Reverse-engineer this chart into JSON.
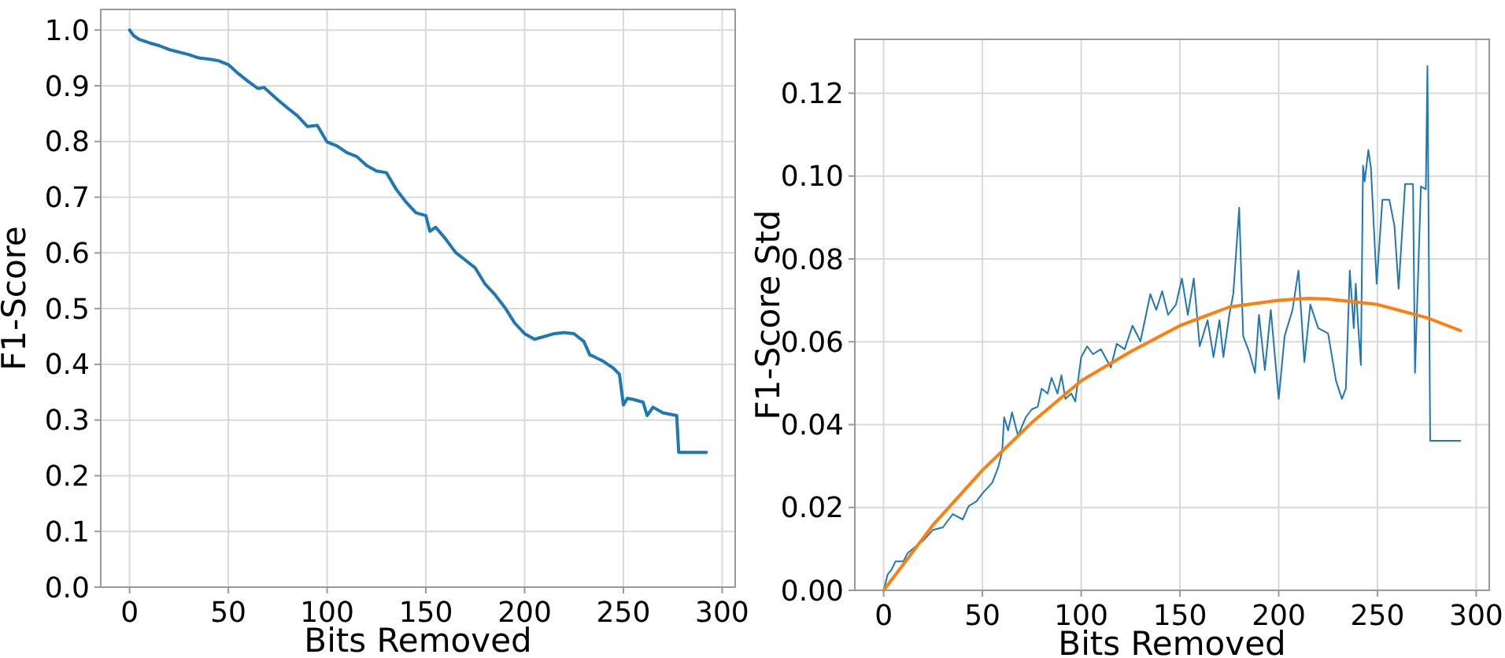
{
  "chart_data": [
    {
      "type": "line",
      "xlabel": "Bits Removed",
      "ylabel": "F1-Score",
      "xlim": [
        -14.6,
        306.6
      ],
      "ylim": [
        0,
        1.037
      ],
      "xticks": [
        0,
        50,
        100,
        150,
        200,
        250,
        300
      ],
      "yticks": [
        {
          "value": 0,
          "label": "0.0"
        },
        0.1,
        0.2,
        0.3,
        0.4,
        0.5,
        0.6,
        0.7,
        0.8,
        0.9,
        {
          "value": 1,
          "label": "1.0"
        }
      ],
      "grid": true,
      "line_style": "solid",
      "series": [
        {
          "color": "#1f77b4",
          "x": [
            0,
            2,
            5,
            10,
            15,
            20,
            30,
            35,
            40,
            45,
            50,
            55,
            60,
            65,
            68,
            75,
            80,
            85,
            90,
            95,
            100,
            105,
            110,
            115,
            120,
            125,
            130,
            135,
            140,
            145,
            150,
            152,
            155,
            160,
            165,
            170,
            175,
            180,
            185,
            190,
            195,
            200,
            205,
            210,
            215,
            220,
            225,
            230,
            233,
            235,
            240,
            245,
            248,
            250,
            252,
            255,
            260,
            262,
            265,
            270,
            277,
            278,
            292
          ],
          "values": [
            1.0,
            0.99,
            0.983,
            0.977,
            0.972,
            0.965,
            0.956,
            0.95,
            0.948,
            0.945,
            0.938,
            0.922,
            0.908,
            0.895,
            0.897,
            0.875,
            0.86,
            0.846,
            0.827,
            0.829,
            0.799,
            0.792,
            0.78,
            0.773,
            0.757,
            0.747,
            0.744,
            0.714,
            0.691,
            0.672,
            0.667,
            0.639,
            0.646,
            0.625,
            0.601,
            0.587,
            0.573,
            0.544,
            0.525,
            0.502,
            0.474,
            0.455,
            0.445,
            0.45,
            0.455,
            0.457,
            0.455,
            0.441,
            0.417,
            0.414,
            0.405,
            0.393,
            0.382,
            0.327,
            0.339,
            0.337,
            0.332,
            0.308,
            0.323,
            0.313,
            0.308,
            0.242,
            0.242
          ]
        }
      ]
    },
    {
      "type": "line",
      "xlabel": "Bits Removed",
      "ylabel": "F1-Score Std",
      "xlim": [
        -14.6,
        306.6
      ],
      "ylim": [
        0,
        0.133
      ],
      "xticks": [
        0,
        50,
        100,
        150,
        200,
        250,
        300
      ],
      "yticks": [
        {
          "value": 0,
          "label": "0.00"
        },
        {
          "value": 0.02,
          "label": "0.02"
        },
        {
          "value": 0.04,
          "label": "0.04"
        },
        {
          "value": 0.06,
          "label": "0.06"
        },
        {
          "value": 0.08,
          "label": "0.08"
        },
        {
          "value": 0.1,
          "label": "0.10"
        },
        {
          "value": 0.12,
          "label": "0.12"
        }
      ],
      "grid": true,
      "line_style": "solid",
      "series": [
        {
          "color": "#1f77b4",
          "x": [
            0,
            2,
            4,
            6,
            10,
            12,
            15,
            20,
            25,
            30,
            35,
            40,
            43,
            47,
            50,
            55,
            58,
            60,
            61,
            63,
            65,
            68,
            72,
            75,
            78,
            80,
            83,
            85,
            88,
            90,
            92,
            95,
            97,
            100,
            103,
            106,
            110,
            115,
            118,
            122,
            126,
            130,
            135,
            138,
            141,
            144,
            148,
            151,
            154,
            157,
            160,
            164,
            167,
            170,
            172,
            175,
            177,
            180,
            182,
            185,
            188,
            190,
            193,
            196,
            200,
            203,
            207,
            210,
            213,
            216,
            220,
            225,
            229,
            232,
            234,
            236,
            238,
            239,
            240.3,
            241.6,
            242.7,
            243.5,
            245.4,
            246.7,
            249.6,
            252.5,
            256,
            258.6,
            260.7,
            264,
            268,
            269,
            272,
            274.5,
            275.3,
            276.7,
            292
          ],
          "values": [
            0.0,
            0.0038,
            0.005,
            0.007,
            0.007,
            0.0089,
            0.0101,
            0.012,
            0.0146,
            0.0152,
            0.0184,
            0.0171,
            0.0203,
            0.0215,
            0.0234,
            0.026,
            0.0297,
            0.0335,
            0.0418,
            0.0386,
            0.043,
            0.0373,
            0.0418,
            0.0437,
            0.0443,
            0.0487,
            0.0475,
            0.0513,
            0.0475,
            0.0519,
            0.0462,
            0.0475,
            0.0456,
            0.0563,
            0.0589,
            0.057,
            0.0582,
            0.0538,
            0.0595,
            0.0582,
            0.0639,
            0.0601,
            0.0715,
            0.0677,
            0.0722,
            0.0665,
            0.069,
            0.0753,
            0.0665,
            0.0753,
            0.0589,
            0.0652,
            0.0563,
            0.0652,
            0.0563,
            0.0665,
            0.0715,
            0.0924,
            0.0614,
            0.0576,
            0.0525,
            0.0665,
            0.0532,
            0.0677,
            0.0462,
            0.0614,
            0.0677,
            0.0772,
            0.0551,
            0.069,
            0.0633,
            0.062,
            0.0506,
            0.0462,
            0.0487,
            0.0772,
            0.0633,
            0.074,
            0.0633,
            0.0544,
            0.1025,
            0.0987,
            0.1063,
            0.1019,
            0.074,
            0.0943,
            0.0943,
            0.088,
            0.0728,
            0.0981,
            0.0981,
            0.0525,
            0.0975,
            0.0968,
            0.1266,
            0.0361,
            0.0361
          ]
        },
        {
          "color": "#ff7f0e",
          "x": [
            0,
            25,
            50,
            75,
            100,
            125,
            150,
            175,
            200,
            215,
            225,
            250,
            275,
            292
          ],
          "values": [
            0.0,
            0.0158,
            0.029,
            0.0405,
            0.0506,
            0.0576,
            0.0639,
            0.0684,
            0.07,
            0.0705,
            0.0703,
            0.069,
            0.0658,
            0.0627
          ]
        }
      ]
    }
  ]
}
